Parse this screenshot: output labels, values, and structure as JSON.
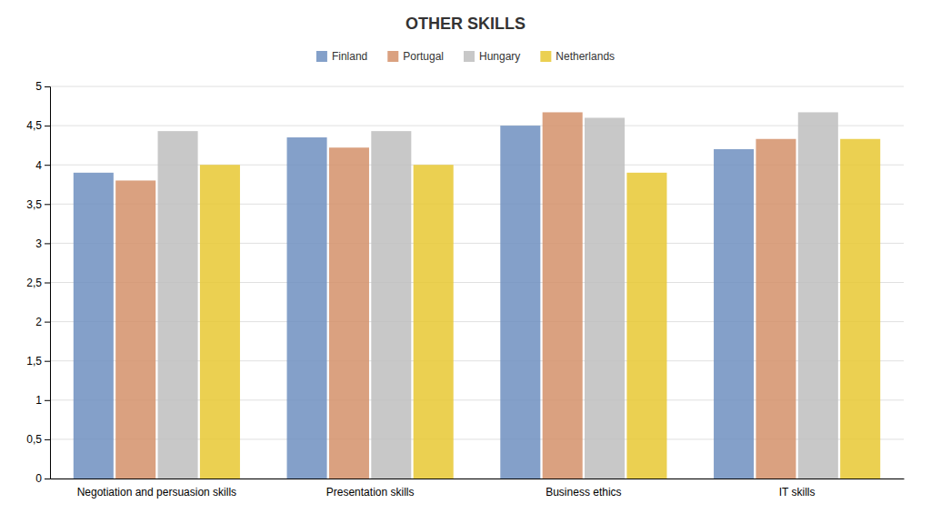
{
  "chart_data": {
    "type": "bar",
    "title": "OTHER SKILLS",
    "categories": [
      "Negotiation and persuasion skills",
      "Presentation skills",
      "Business ethics",
      "IT skills"
    ],
    "series": [
      {
        "name": "Finland",
        "color": "#6F8FBF",
        "values": [
          3.9,
          4.35,
          4.5,
          4.2
        ]
      },
      {
        "name": "Portugal",
        "color": "#D4916A",
        "values": [
          3.8,
          4.22,
          4.67,
          4.33
        ]
      },
      {
        "name": "Hungary",
        "color": "#BEBEBE",
        "values": [
          4.43,
          4.43,
          4.6,
          4.67
        ]
      },
      {
        "name": "Netherlands",
        "color": "#E8C832",
        "values": [
          4.0,
          4.0,
          3.9,
          4.33
        ]
      }
    ],
    "ylim": [
      0,
      5
    ],
    "yticks": [
      0,
      {
        "value": 0.5,
        "label": "0,5"
      },
      1,
      {
        "value": 1.5,
        "label": "1,5"
      },
      2,
      {
        "value": 2.5,
        "label": "2,5"
      },
      3,
      {
        "value": 3.5,
        "label": "3,5"
      },
      4,
      {
        "value": 4.5,
        "label": "4,5"
      },
      5
    ],
    "grid": true,
    "legend": "top"
  }
}
